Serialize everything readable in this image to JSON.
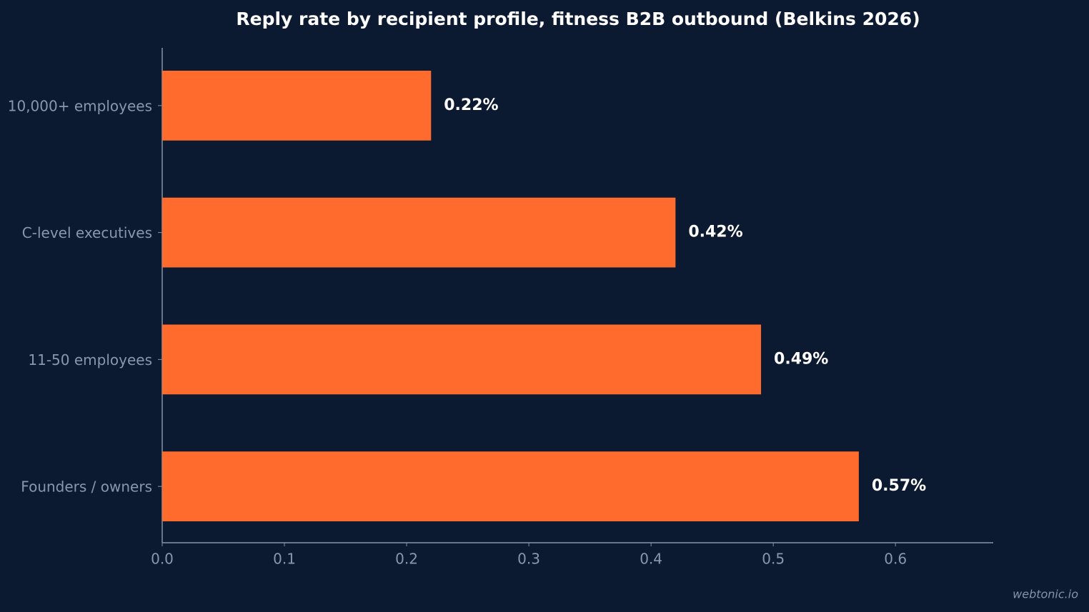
{
  "chart_data": {
    "type": "barh",
    "title": "Reply rate by recipient profile, fitness B2B outbound (Belkins 2026)",
    "categories": [
      "10,000+ employees",
      "C-level executives",
      "11-50 employees",
      "Founders / owners"
    ],
    "values": [
      0.22,
      0.42,
      0.49,
      0.57
    ],
    "value_labels": [
      "0.22%",
      "0.42%",
      "0.49%",
      "0.57%"
    ],
    "color": "#ff6b2c",
    "xlim": [
      0,
      0.68
    ],
    "xticks": [
      {
        "value": 0,
        "label": "0.0"
      },
      0.1,
      0.2,
      0.3,
      0.4,
      0.5,
      0.6
    ],
    "watermark": "webtonic.io"
  }
}
